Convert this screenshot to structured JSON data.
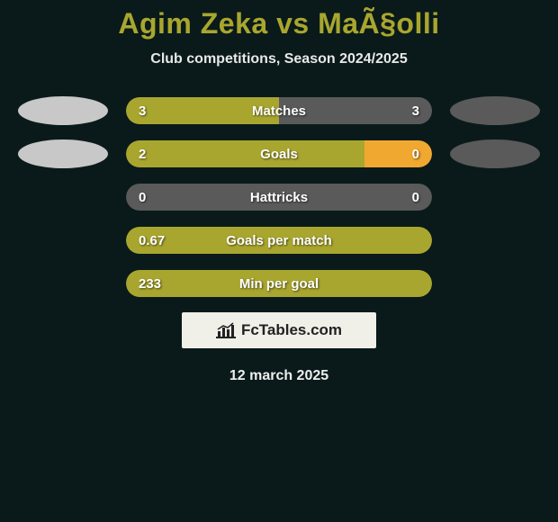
{
  "title": "Agim Zeka vs MaÃ§olli",
  "subtitle": "Club competitions, Season 2024/2025",
  "date": "12 march 2025",
  "attribution_text": "FcTables.com",
  "colors": {
    "logo_left": "#c8c8c8",
    "logo_right": "#5a5a5a",
    "bar_active": "#a9a62f",
    "bar_inactive": "#5a5a5a",
    "bar_highlight": "#f0a830",
    "background": "#0a1a1a"
  },
  "bars": [
    {
      "label": "Matches",
      "left_val": "3",
      "right_val": "3",
      "left_fill_pct": 50,
      "right_fill_pct": 50,
      "left_color": "#a9a62f",
      "right_color": "#5a5a5a",
      "has_logos": true
    },
    {
      "label": "Goals",
      "left_val": "2",
      "right_val": "0",
      "left_fill_pct": 78,
      "right_fill_pct": 22,
      "left_color": "#a9a62f",
      "right_color": "#f0a830",
      "has_logos": true
    },
    {
      "label": "Hattricks",
      "left_val": "0",
      "right_val": "0",
      "left_fill_pct": 0,
      "right_fill_pct": 0,
      "left_color": "#a9a62f",
      "right_color": "#5a5a5a",
      "bg_color": "#5a5a5a",
      "has_logos": false
    },
    {
      "label": "Goals per match",
      "left_val": "0.67",
      "right_val": "",
      "left_fill_pct": 100,
      "right_fill_pct": 0,
      "left_color": "#a9a62f",
      "right_color": "#5a5a5a",
      "has_logos": false
    },
    {
      "label": "Min per goal",
      "left_val": "233",
      "right_val": "",
      "left_fill_pct": 100,
      "right_fill_pct": 0,
      "left_color": "#a9a62f",
      "right_color": "#5a5a5a",
      "has_logos": false
    }
  ]
}
